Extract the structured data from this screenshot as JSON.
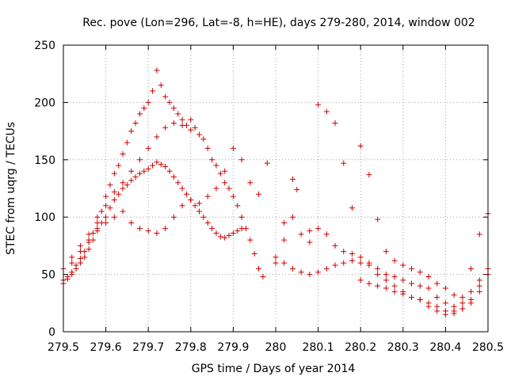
{
  "chart_data": {
    "type": "scatter",
    "title": "Rec. pove (Lon=296, Lat=-8, h=HE), days 279-280, 2014, window 002",
    "xlabel": "GPS time / Days of year 2014",
    "ylabel": "STEC from uqrg / TECUs",
    "xlim": [
      279.5,
      280.5
    ],
    "ylim": [
      0,
      250
    ],
    "x_ticks": [
      "279.5",
      "279.6",
      "279.7",
      "279.8",
      "279.9",
      "280",
      "280.1",
      "280.2",
      "280.3",
      "280.4",
      "280.5"
    ],
    "y_ticks": [
      "0",
      "50",
      "100",
      "150",
      "200",
      "250"
    ],
    "grid": true,
    "marker": "plus",
    "color": "#cc0000",
    "series": [
      {
        "values": [
          [
            279.5,
            45
          ],
          [
            279.51,
            48
          ],
          [
            279.52,
            52
          ],
          [
            279.53,
            58
          ],
          [
            279.54,
            64
          ],
          [
            279.55,
            70
          ],
          [
            279.56,
            78
          ],
          [
            279.57,
            86
          ],
          [
            279.58,
            95
          ],
          [
            279.59,
            105
          ],
          [
            279.6,
            118
          ],
          [
            279.61,
            128
          ],
          [
            279.62,
            138
          ],
          [
            279.63,
            145
          ],
          [
            279.64,
            155
          ],
          [
            279.65,
            165
          ],
          [
            279.66,
            175
          ],
          [
            279.67,
            182
          ],
          [
            279.68,
            190
          ],
          [
            279.69,
            195
          ],
          [
            279.7,
            200
          ],
          [
            279.71,
            210
          ],
          [
            279.72,
            228
          ],
          [
            279.73,
            215
          ],
          [
            279.74,
            205
          ],
          [
            279.75,
            200
          ],
          [
            279.76,
            195
          ],
          [
            279.77,
            190
          ],
          [
            279.78,
            185
          ],
          [
            279.79,
            180
          ],
          [
            279.8,
            185
          ],
          [
            279.81,
            178
          ],
          [
            279.82,
            172
          ],
          [
            279.83,
            168
          ],
          [
            279.84,
            160
          ],
          [
            279.85,
            150
          ],
          [
            279.86,
            145
          ],
          [
            279.87,
            138
          ],
          [
            279.88,
            130
          ],
          [
            279.89,
            125
          ],
          [
            279.9,
            118
          ],
          [
            279.91,
            110
          ],
          [
            279.92,
            100
          ],
          [
            279.93,
            90
          ],
          [
            279.94,
            80
          ],
          [
            279.95,
            68
          ],
          [
            279.96,
            55
          ],
          [
            279.97,
            48
          ],
          [
            279.5,
            42
          ],
          [
            279.51,
            46
          ],
          [
            279.52,
            50
          ],
          [
            279.53,
            55
          ],
          [
            279.54,
            60
          ],
          [
            279.55,
            65
          ],
          [
            279.56,
            72
          ],
          [
            279.57,
            80
          ],
          [
            279.58,
            88
          ],
          [
            279.59,
            95
          ],
          [
            279.6,
            100
          ],
          [
            279.61,
            108
          ],
          [
            279.62,
            115
          ],
          [
            279.63,
            120
          ],
          [
            279.64,
            125
          ],
          [
            279.65,
            128
          ],
          [
            279.66,
            132
          ],
          [
            279.67,
            135
          ],
          [
            279.68,
            138
          ],
          [
            279.69,
            140
          ],
          [
            279.7,
            142
          ],
          [
            279.71,
            145
          ],
          [
            279.72,
            148
          ],
          [
            279.73,
            146
          ],
          [
            279.74,
            144
          ],
          [
            279.75,
            140
          ],
          [
            279.76,
            135
          ],
          [
            279.77,
            130
          ],
          [
            279.78,
            125
          ],
          [
            279.79,
            120
          ],
          [
            279.8,
            115
          ],
          [
            279.81,
            110
          ],
          [
            279.82,
            105
          ],
          [
            279.83,
            100
          ],
          [
            279.84,
            95
          ],
          [
            279.85,
            90
          ],
          [
            279.86,
            86
          ],
          [
            279.87,
            83
          ],
          [
            279.88,
            82
          ],
          [
            279.89,
            84
          ],
          [
            279.9,
            86
          ],
          [
            279.91,
            88
          ],
          [
            279.92,
            90
          ],
          [
            279.52,
            60
          ],
          [
            279.54,
            70
          ],
          [
            279.56,
            80
          ],
          [
            279.58,
            90
          ],
          [
            279.6,
            95
          ],
          [
            279.62,
            100
          ],
          [
            279.64,
            105
          ],
          [
            279.66,
            95
          ],
          [
            279.68,
            90
          ],
          [
            279.7,
            88
          ],
          [
            279.72,
            86
          ],
          [
            279.74,
            90
          ],
          [
            279.76,
            100
          ],
          [
            279.78,
            110
          ],
          [
            279.8,
            115
          ],
          [
            279.82,
            112
          ],
          [
            279.84,
            118
          ],
          [
            279.86,
            125
          ],
          [
            279.88,
            140
          ],
          [
            279.9,
            160
          ],
          [
            279.92,
            150
          ],
          [
            279.94,
            130
          ],
          [
            279.96,
            120
          ],
          [
            279.98,
            147
          ],
          [
            279.5,
            55
          ],
          [
            279.52,
            65
          ],
          [
            279.54,
            75
          ],
          [
            279.56,
            85
          ],
          [
            279.58,
            100
          ],
          [
            279.6,
            110
          ],
          [
            279.62,
            122
          ],
          [
            279.64,
            130
          ],
          [
            279.66,
            140
          ],
          [
            279.68,
            150
          ],
          [
            279.7,
            160
          ],
          [
            279.72,
            170
          ],
          [
            279.74,
            178
          ],
          [
            279.76,
            182
          ],
          [
            279.78,
            180
          ],
          [
            279.8,
            176
          ],
          [
            280.0,
            65
          ],
          [
            280.02,
            60
          ],
          [
            280.04,
            55
          ],
          [
            280.06,
            52
          ],
          [
            280.08,
            50
          ],
          [
            280.1,
            52
          ],
          [
            280.12,
            55
          ],
          [
            280.14,
            58
          ],
          [
            280.16,
            60
          ],
          [
            280.18,
            62
          ],
          [
            280.2,
            60
          ],
          [
            280.22,
            58
          ],
          [
            280.24,
            55
          ],
          [
            280.26,
            50
          ],
          [
            280.28,
            48
          ],
          [
            280.3,
            45
          ],
          [
            280.32,
            42
          ],
          [
            280.34,
            40
          ],
          [
            280.36,
            38
          ],
          [
            280.38,
            30
          ],
          [
            280.4,
            25
          ],
          [
            280.42,
            22
          ],
          [
            280.44,
            20
          ],
          [
            280.46,
            25
          ],
          [
            280.48,
            35
          ],
          [
            280.5,
            50
          ],
          [
            280.0,
            60
          ],
          [
            280.02,
            95
          ],
          [
            280.04,
            100
          ],
          [
            280.06,
            85
          ],
          [
            280.08,
            78
          ],
          [
            280.1,
            198
          ],
          [
            280.12,
            192
          ],
          [
            280.14,
            182
          ],
          [
            280.16,
            147
          ],
          [
            280.18,
            108
          ],
          [
            280.2,
            162
          ],
          [
            280.22,
            137
          ],
          [
            280.24,
            98
          ],
          [
            280.26,
            70
          ],
          [
            280.28,
            62
          ],
          [
            280.3,
            58
          ],
          [
            280.32,
            55
          ],
          [
            280.34,
            52
          ],
          [
            280.36,
            48
          ],
          [
            280.38,
            42
          ],
          [
            280.4,
            38
          ],
          [
            280.42,
            32
          ],
          [
            280.44,
            30
          ],
          [
            280.46,
            55
          ],
          [
            280.48,
            85
          ],
          [
            280.5,
            103
          ],
          [
            280.02,
            80
          ],
          [
            280.04,
            133
          ],
          [
            280.05,
            124
          ],
          [
            280.08,
            88
          ],
          [
            280.1,
            90
          ],
          [
            280.12,
            85
          ],
          [
            280.14,
            75
          ],
          [
            280.16,
            70
          ],
          [
            280.18,
            68
          ],
          [
            280.2,
            65
          ],
          [
            280.22,
            60
          ],
          [
            280.24,
            50
          ],
          [
            280.26,
            45
          ],
          [
            280.28,
            40
          ],
          [
            280.3,
            35
          ],
          [
            280.32,
            30
          ],
          [
            280.34,
            28
          ],
          [
            280.36,
            25
          ],
          [
            280.38,
            22
          ],
          [
            280.4,
            18
          ],
          [
            280.42,
            16
          ],
          [
            280.44,
            20
          ],
          [
            280.46,
            28
          ],
          [
            280.48,
            40
          ],
          [
            280.2,
            45
          ],
          [
            280.22,
            42
          ],
          [
            280.24,
            40
          ],
          [
            280.26,
            38
          ],
          [
            280.28,
            35
          ],
          [
            280.3,
            33
          ],
          [
            280.32,
            30
          ],
          [
            280.34,
            28
          ],
          [
            280.36,
            22
          ],
          [
            280.38,
            18
          ],
          [
            280.4,
            15
          ],
          [
            280.42,
            18
          ],
          [
            280.44,
            25
          ],
          [
            280.46,
            35
          ],
          [
            280.48,
            45
          ],
          [
            280.5,
            55
          ]
        ]
      }
    ]
  }
}
